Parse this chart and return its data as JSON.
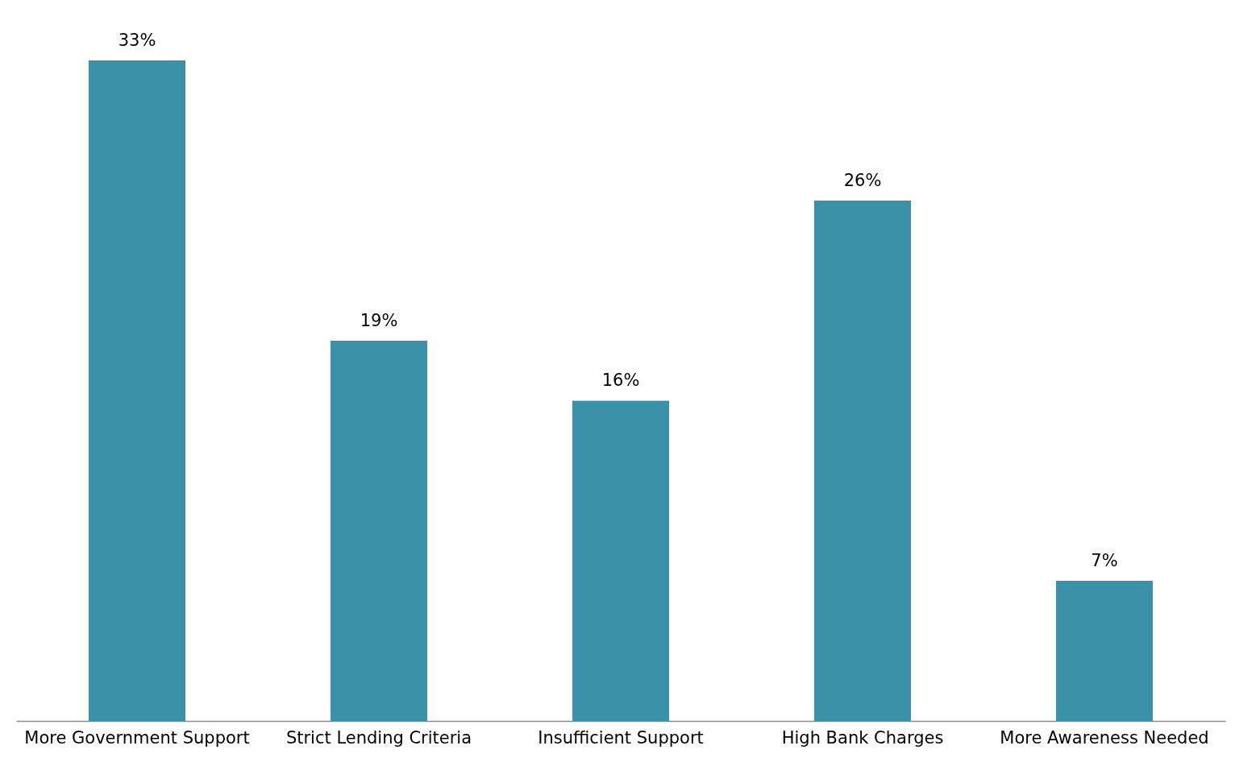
{
  "chart_data": {
    "type": "bar",
    "categories": [
      "More Government Support",
      "Strict Lending Criteria",
      "Insufficient Support",
      "High Bank Charges",
      "More Awareness Needed"
    ],
    "values": [
      33,
      19,
      16,
      26,
      7
    ],
    "value_labels": [
      "33%",
      "19%",
      "16%",
      "26%",
      "7%"
    ],
    "color": "#3a91a8",
    "grid": false
  }
}
